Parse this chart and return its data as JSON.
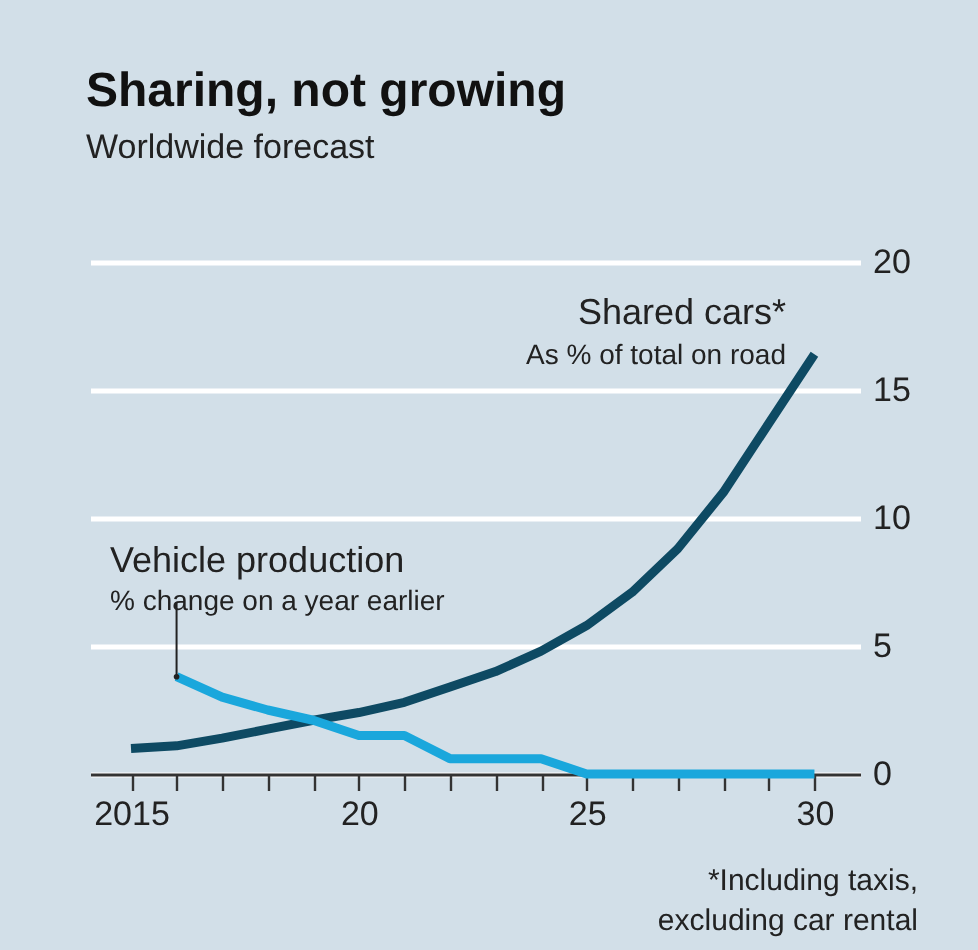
{
  "chart_data": {
    "type": "line",
    "title": "Sharing, not growing",
    "subtitle": "Worldwide forecast",
    "x": [
      2015,
      2016,
      2017,
      2018,
      2019,
      2020,
      2021,
      2022,
      2023,
      2024,
      2025,
      2026,
      2027,
      2028,
      2029,
      2030
    ],
    "series": [
      {
        "name": "Shared cars*",
        "color": "#0e4a63",
        "values": [
          1.0,
          1.1,
          1.4,
          1.75,
          2.1,
          2.4,
          2.8,
          3.4,
          4.0,
          4.8,
          5.8,
          7.1,
          8.8,
          11.0,
          13.7,
          16.4
        ]
      },
      {
        "name": "Vehicle production",
        "color": "#1aa7dc",
        "values": [
          null,
          3.8,
          3.0,
          2.5,
          2.1,
          1.5,
          1.5,
          0.6,
          0.6,
          0.6,
          0,
          0,
          0,
          0,
          0,
          0
        ]
      }
    ],
    "annotations": [
      "As % of total on road",
      {
        "text": "% change on a year earlier",
        "x": 2016,
        "y": 3.8
      },
      "*Including taxis, excluding car rental"
    ],
    "xlim": [
      2014.1,
      2031
    ],
    "xticks": [
      2015,
      {
        "value": 2016,
        "label": null
      },
      {
        "value": 2017,
        "label": null
      },
      {
        "value": 2018,
        "label": null
      },
      {
        "value": 2019,
        "label": null
      },
      {
        "value": 2020,
        "label": "20"
      },
      {
        "value": 2021,
        "label": null
      },
      {
        "value": 2022,
        "label": null
      },
      {
        "value": 2023,
        "label": null
      },
      {
        "value": 2024,
        "label": null
      },
      {
        "value": 2025,
        "label": "25"
      },
      {
        "value": 2026,
        "label": null
      },
      {
        "value": 2027,
        "label": null
      },
      {
        "value": 2028,
        "label": null
      },
      {
        "value": 2029,
        "label": null
      },
      {
        "value": 2030,
        "label": "30"
      }
    ],
    "ylim": [
      0,
      20
    ],
    "yticks": [
      0,
      5,
      10,
      15,
      20
    ],
    "grid": "y",
    "legend": false,
    "marker": "none",
    "line_style": "solid"
  }
}
